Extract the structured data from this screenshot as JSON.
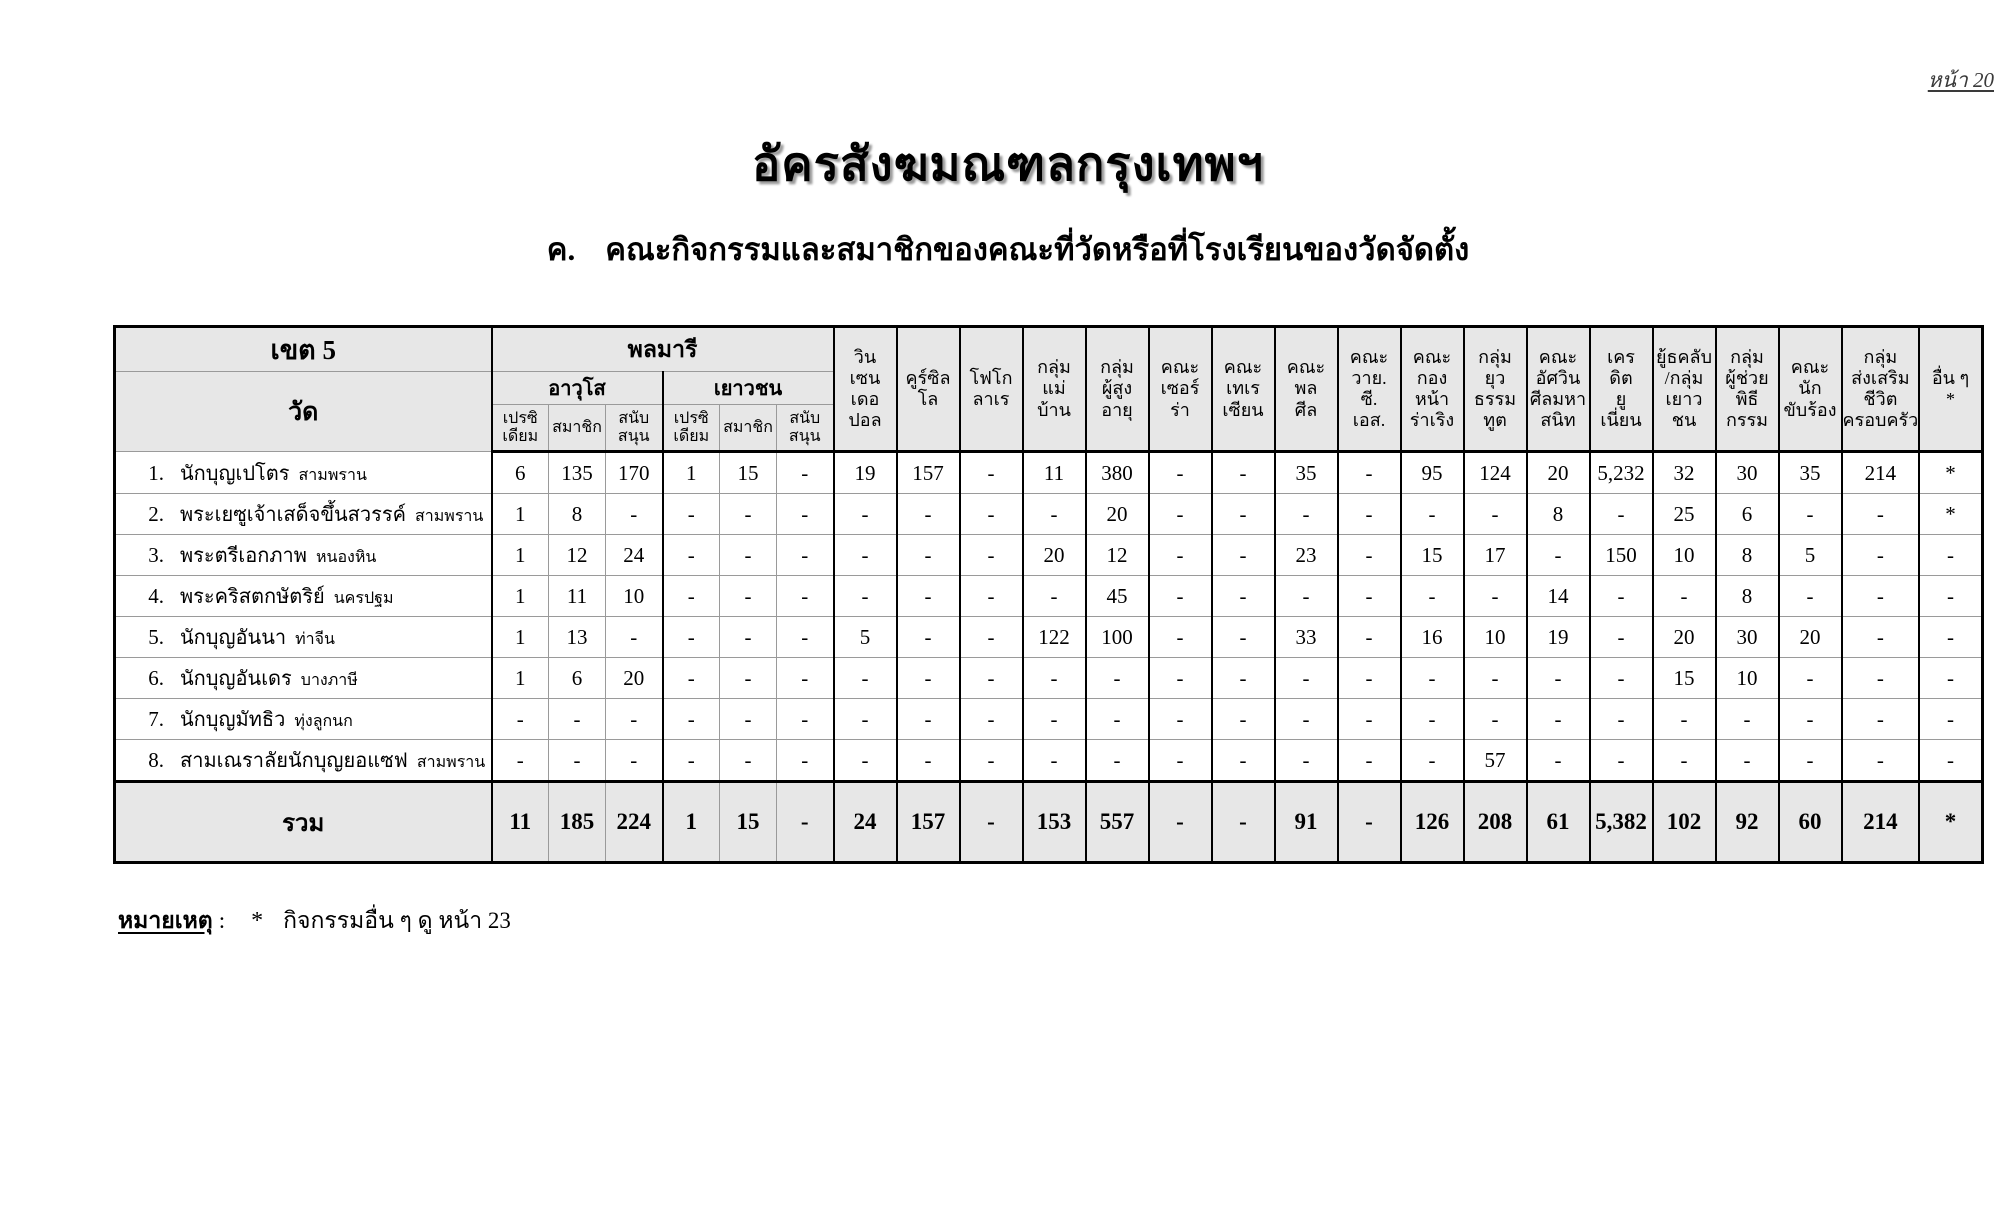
{
  "page": {
    "number_label": "หน้า 20"
  },
  "header": {
    "title": "อัครสังฆมณฑลกรุงเทพฯ",
    "subtitle_prefix": "ค.",
    "subtitle": "คณะกิจกรรมและสมาชิกของคณะที่วัดหรือที่โรงเรียนของวัดจัดตั้ง"
  },
  "table": {
    "zone_label": "เขต 5",
    "church_col_label": "วัด",
    "group_legion": "พลมารี",
    "legion_sub": [
      "อาวุโส",
      "เยาวชน"
    ],
    "legion_leaf": [
      "เปรซิ\nเดียม",
      "สมาชิก",
      "สนับ\nสนุน",
      "เปรซิ\nเดียม",
      "สมาชิก",
      "สนับ\nสนุน"
    ],
    "activity_columns": [
      "วิน\nเซน\nเดอ\nปอล",
      "คูร์ซิล\nโล",
      "โฟโก\nลาเร",
      "กลุ่ม\nแม่\nบ้าน",
      "กลุ่ม\nผู้สูง\nอายุ",
      "คณะ\nเซอร์\nร่า",
      "คณะ\nเทเร\nเซียน",
      "คณะ\nพล\nศีล",
      "คณะ\nวาย.\nซี.\nเอส.",
      "คณะ\nกอง\nหน้า\nร่าเริง",
      "กลุ่ม\nยุว\nธรรม\nทูต",
      "คณะ\nอัศวิน\nศีลมหา\nสนิท",
      "เคร\nดิต\nยู\nเนี่ยน",
      "ยู้ธคลับ\n/กลุ่ม\nเยาว\nชน",
      "กลุ่ม\nผู้ช่วย\nพิธี\nกรรม",
      "คณะ\nนัก\nขับร้อง",
      "กลุ่ม\nส่งเสริม\nชีวิต\nครอบครัว",
      "อื่น ๆ\n*"
    ],
    "rows": [
      {
        "no": "1.",
        "name": "นักบุญเปโตร",
        "location": "สามพราน",
        "values": [
          "6",
          "135",
          "170",
          "1",
          "15",
          "-",
          "19",
          "157",
          "-",
          "11",
          "380",
          "-",
          "-",
          "35",
          "-",
          "95",
          "124",
          "20",
          "5,232",
          "32",
          "30",
          "35",
          "214",
          "*"
        ]
      },
      {
        "no": "2.",
        "name": "พระเยซูเจ้าเสด็จขึ้นสวรรค์",
        "location": "สามพราน",
        "values": [
          "1",
          "8",
          "-",
          "-",
          "-",
          "-",
          "-",
          "-",
          "-",
          "-",
          "20",
          "-",
          "-",
          "-",
          "-",
          "-",
          "-",
          "8",
          "-",
          "25",
          "6",
          "-",
          "-",
          "*"
        ]
      },
      {
        "no": "3.",
        "name": "พระตรีเอกภาพ",
        "location": "หนองหิน",
        "values": [
          "1",
          "12",
          "24",
          "-",
          "-",
          "-",
          "-",
          "-",
          "-",
          "20",
          "12",
          "-",
          "-",
          "23",
          "-",
          "15",
          "17",
          "-",
          "150",
          "10",
          "8",
          "5",
          "-",
          "-"
        ]
      },
      {
        "no": "4.",
        "name": "พระคริสตกษัตริย์",
        "location": "นครปฐม",
        "values": [
          "1",
          "11",
          "10",
          "-",
          "-",
          "-",
          "-",
          "-",
          "-",
          "-",
          "45",
          "-",
          "-",
          "-",
          "-",
          "-",
          "-",
          "14",
          "-",
          "-",
          "8",
          "-",
          "-",
          "-"
        ]
      },
      {
        "no": "5.",
        "name": "นักบุญอันนา",
        "location": "ท่าจีน",
        "values": [
          "1",
          "13",
          "-",
          "-",
          "-",
          "-",
          "5",
          "-",
          "-",
          "122",
          "100",
          "-",
          "-",
          "33",
          "-",
          "16",
          "10",
          "19",
          "-",
          "20",
          "30",
          "20",
          "-",
          "-"
        ]
      },
      {
        "no": "6.",
        "name": "นักบุญอันเดร",
        "location": "บางภาษี",
        "values": [
          "1",
          "6",
          "20",
          "-",
          "-",
          "-",
          "-",
          "-",
          "-",
          "-",
          "-",
          "-",
          "-",
          "-",
          "-",
          "-",
          "-",
          "-",
          "-",
          "15",
          "10",
          "-",
          "-",
          "-"
        ]
      },
      {
        "no": "7.",
        "name": "นักบุญมัทธิว",
        "location": "ทุ่งลูกนก",
        "values": [
          "-",
          "-",
          "-",
          "-",
          "-",
          "-",
          "-",
          "-",
          "-",
          "-",
          "-",
          "-",
          "-",
          "-",
          "-",
          "-",
          "-",
          "-",
          "-",
          "-",
          "-",
          "-",
          "-",
          "-"
        ]
      },
      {
        "no": "8.",
        "name": "สามเณราลัยนักบุญยอแซฟ",
        "location": "สามพราน",
        "values": [
          "-",
          "-",
          "-",
          "-",
          "-",
          "-",
          "-",
          "-",
          "-",
          "-",
          "-",
          "-",
          "-",
          "-",
          "-",
          "-",
          "57",
          "-",
          "-",
          "-",
          "-",
          "-",
          "-",
          "-"
        ]
      }
    ],
    "total": {
      "label": "รวม",
      "values": [
        "11",
        "185",
        "224",
        "1",
        "15",
        "-",
        "24",
        "157",
        "-",
        "153",
        "557",
        "-",
        "-",
        "91",
        "-",
        "126",
        "208",
        "61",
        "5,382",
        "102",
        "92",
        "60",
        "214",
        "*"
      ]
    }
  },
  "note": {
    "label": "หมายเหตุ",
    "colon": ":",
    "symbol": "*",
    "text": "กิจกรรมอื่น ๆ ดู หน้า 23"
  },
  "colors": {
    "header_bg": "#e7e7e7",
    "grid_light": "#9a9a9a",
    "grid_dark": "#000000",
    "title_shadow": "#9b9b9b"
  },
  "layout_hints": {
    "church_col_width": 377,
    "legion_col_width": 57,
    "activity_col_width": 63
  }
}
